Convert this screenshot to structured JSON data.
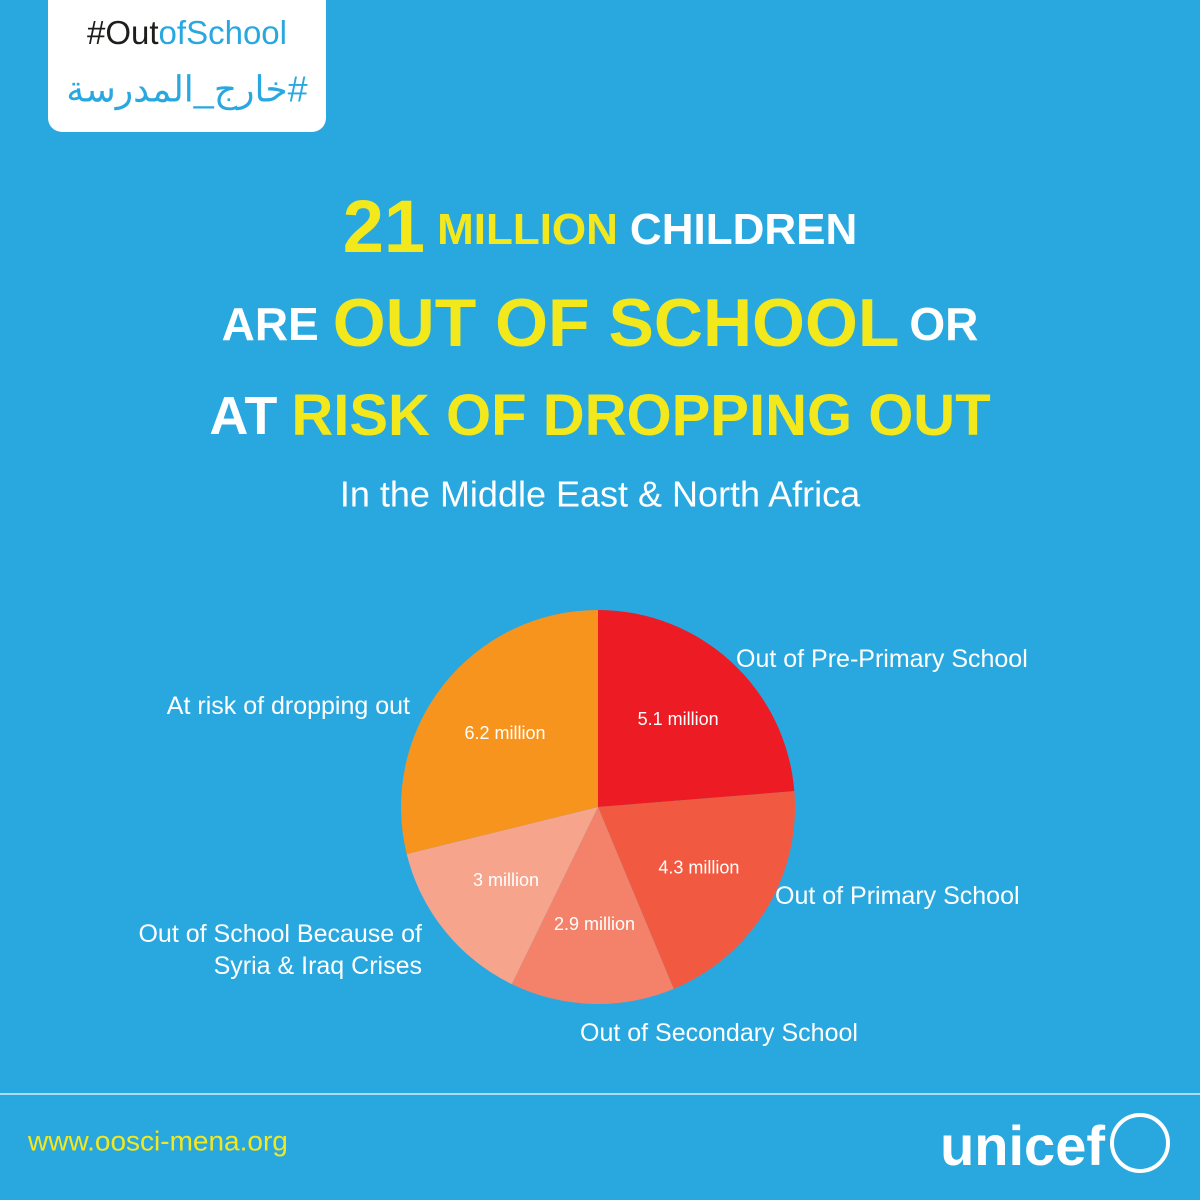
{
  "header": {
    "hashtag_parts": [
      "#Out",
      "of",
      "School"
    ],
    "hashtag_arabic": "#خارج_المدرسة",
    "headline": [
      [
        "21",
        "MILLION",
        "CHILDREN"
      ],
      [
        "ARE",
        "OUT OF SCHOOL",
        "OR"
      ],
      [
        "AT",
        "RISK OF DROPPING OUT"
      ]
    ],
    "subtitle": "In the Middle East & North Africa"
  },
  "chart_data": {
    "type": "pie",
    "categories": [
      "Out of Pre-Primary School",
      "Out of Primary School",
      "Out of Secondary School",
      "Out of School Because of\nSyria & Iraq Crises",
      "At risk of dropping out"
    ],
    "values": [
      5.1,
      4.3,
      2.9,
      3,
      6.2
    ],
    "value_labels": [
      "5.1 million",
      "4.3 million",
      "2.9 million",
      "3 million",
      "6.2 million"
    ],
    "colors": [
      "#ed1c24",
      "#f15a40",
      "#f4826a",
      "#f6a58c",
      "#f7941d"
    ]
  },
  "footer": {
    "url": "www.oosci-mena.org",
    "logo": "unicef"
  }
}
